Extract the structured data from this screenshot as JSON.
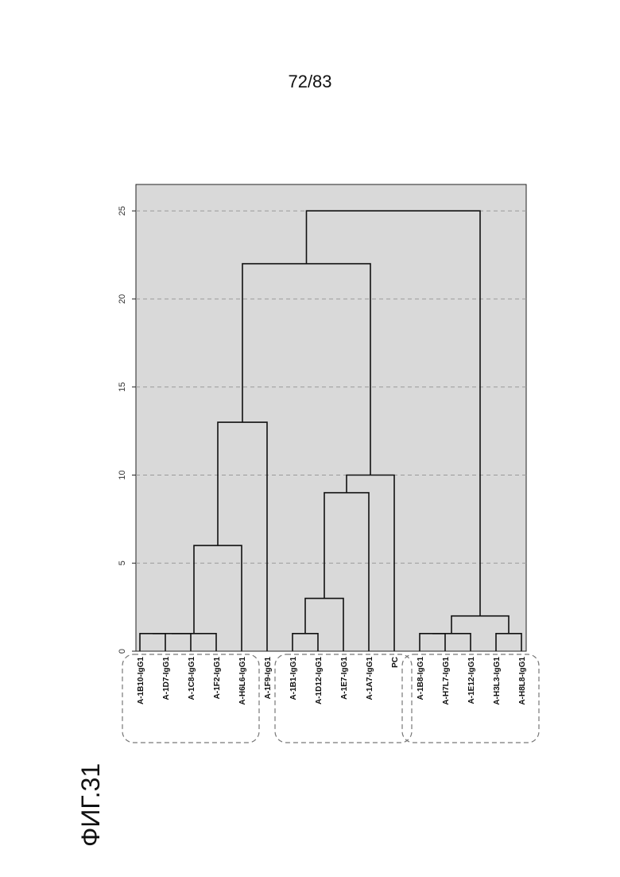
{
  "page_number": "72/83",
  "figure_label": "ФИГ.31",
  "chart_data": {
    "type": "dendrogram",
    "ylim": [
      0,
      26.5
    ],
    "y_ticks": [
      0,
      5,
      10,
      15,
      20,
      25
    ],
    "grid": true,
    "background_color": "#d9d9d9",
    "line_color": "#111111",
    "leaves": [
      "A-1B10-IgG1",
      "A-1D7-IgG1",
      "A-1C8-IgG1",
      "A-1F2-IgG1",
      "A-H6L6-IgG1",
      "A-1F9-IgG1",
      "A-1B1-IgG1",
      "A-1D12-IgG1",
      "A-1E7-IgG1",
      "A-1A7-IgG1",
      "PC",
      "A-1B8-IgG1",
      "A-H7L7-IgG1",
      "A-1E12-IgG1",
      "A-H3L3-IgG1",
      "A-H8L8-IgG1"
    ],
    "merges": [
      {
        "id": "m1",
        "left": 0,
        "right": 1,
        "height": 1
      },
      {
        "id": "m2",
        "left": "m1",
        "right": 2,
        "height": 1
      },
      {
        "id": "m3",
        "left": "m2",
        "right": 3,
        "height": 1
      },
      {
        "id": "m4",
        "left": "m3",
        "right": 4,
        "height": 6
      },
      {
        "id": "m5",
        "left": "m4",
        "right": 5,
        "height": 13
      },
      {
        "id": "m6",
        "left": 6,
        "right": 7,
        "height": 1
      },
      {
        "id": "m7",
        "left": "m6",
        "right": 8,
        "height": 3
      },
      {
        "id": "m8",
        "left": "m7",
        "right": 9,
        "height": 9
      },
      {
        "id": "m9",
        "left": "m8",
        "right": 10,
        "height": 10
      },
      {
        "id": "m10",
        "left": "m5",
        "right": "m9",
        "height": 22
      },
      {
        "id": "m11",
        "left": 11,
        "right": 12,
        "height": 1
      },
      {
        "id": "m12",
        "left": "m11",
        "right": 13,
        "height": 1
      },
      {
        "id": "m13",
        "left": 14,
        "right": 15,
        "height": 1
      },
      {
        "id": "m14",
        "left": "m12",
        "right": "m13",
        "height": 2
      },
      {
        "id": "m15",
        "left": "m10",
        "right": "m14",
        "height": 25
      }
    ],
    "clusters": [
      [
        0,
        4
      ],
      [
        6,
        10
      ],
      [
        11,
        15
      ]
    ]
  }
}
